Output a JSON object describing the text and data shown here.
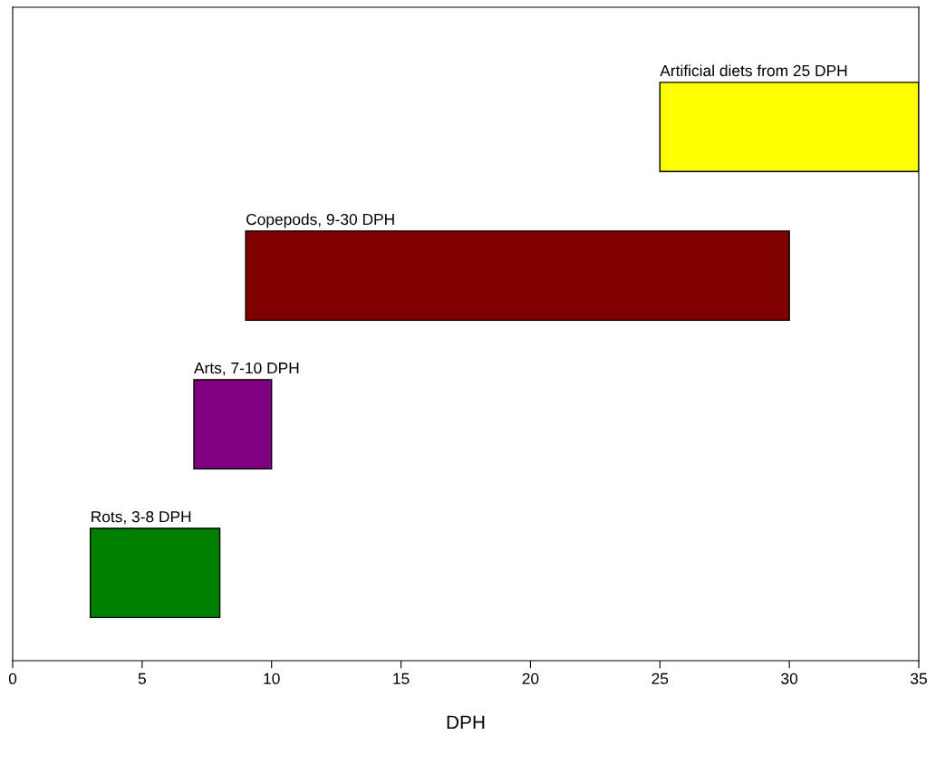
{
  "chart_data": {
    "type": "bar",
    "orientation": "horizontal",
    "xlabel": "DPH",
    "categories": [
      null,
      null,
      null,
      null
    ],
    "base": [
      25,
      9,
      7,
      3
    ],
    "values": [
      10,
      21,
      3,
      5
    ],
    "colors": [
      "#ffff00",
      "#800000",
      "#800080",
      "#008000"
    ],
    "value_labels": [
      "Artificial diets from 25 DPH",
      "Copepods, 9-30 DPH",
      "Arts, 7-10 DPH",
      "Rots, 3-8 DPH"
    ],
    "xlim": [
      0,
      35
    ],
    "xticks": [
      0,
      5,
      10,
      15,
      20,
      25,
      30,
      35
    ],
    "tick_labels": "x",
    "grid": false,
    "legend": false
  }
}
